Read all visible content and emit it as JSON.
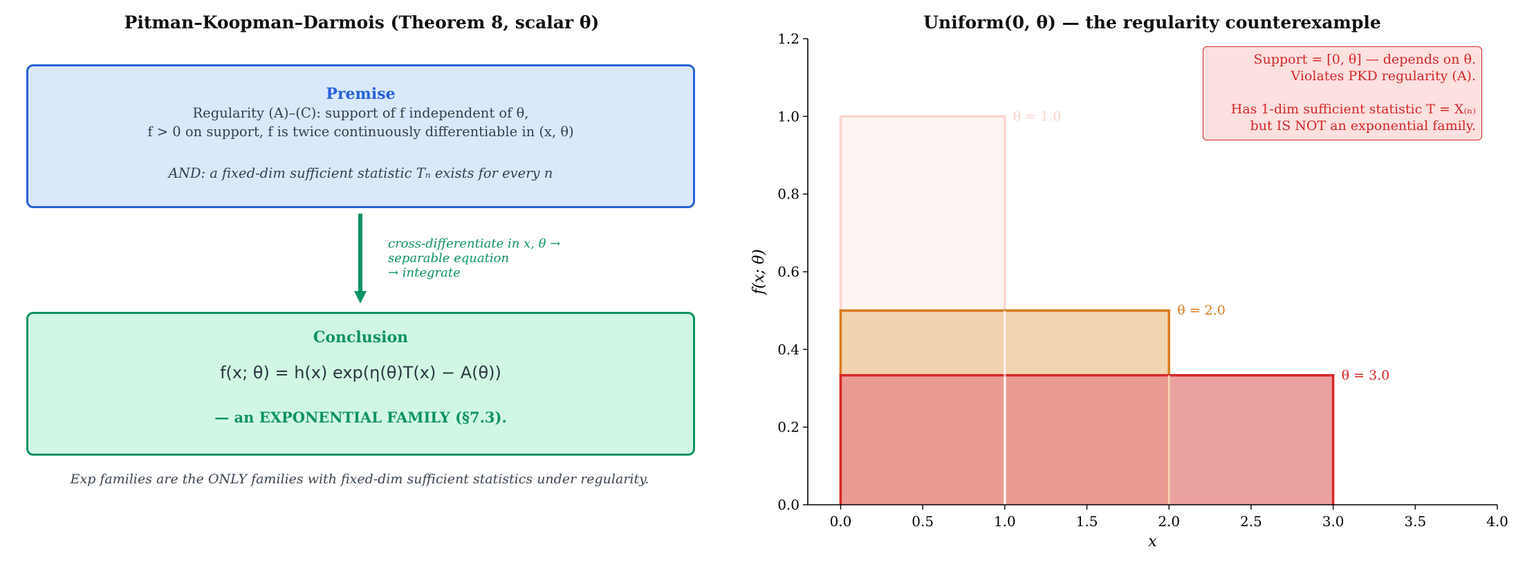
{
  "left_panel": {
    "title": "Pitman–Koopman–Darmois (Theorem 8, scalar θ)",
    "premise": {
      "heading": "Premise",
      "line1": "Regularity (A)–(C):   support of f independent of θ,",
      "line2": "f > 0 on support, f is twice continuously differentiable in (x, θ)",
      "line3": "AND: a fixed-dim sufficient statistic Tₙ exists for every n"
    },
    "arrow_note": [
      "cross-differentiate in x, θ →",
      "separable equation",
      "→ integrate"
    ],
    "conclusion": {
      "heading": "Conclusion",
      "formula": "f(x; θ) = h(x) exp(η(θ)T(x) − A(θ))",
      "result": "— an EXPONENTIAL FAMILY (§7.3)."
    },
    "footnote": "Exp families are the ONLY families with fixed-dim sufficient statistics under regularity."
  },
  "colors": {
    "premise_fill": "#dae8fc",
    "premise_border": "#2761d8",
    "conclusion_fill": "#d1f7e4",
    "conclusion_border": "#0e9363",
    "annotation": "#d62728"
  },
  "chart_data": {
    "type": "area",
    "title": "Uniform(0, θ) — the regularity counterexample",
    "xlabel": "x",
    "ylabel": "f(x; θ)",
    "xlim": [
      -0.2,
      4.0
    ],
    "ylim": [
      0.0,
      1.2
    ],
    "xticks": [
      "0.0",
      "0.5",
      "1.0",
      "1.5",
      "2.0",
      "2.5",
      "3.0",
      "3.5",
      "4.0"
    ],
    "yticks": [
      "0.0",
      "0.2",
      "0.4",
      "0.6",
      "0.8",
      "1.0",
      "1.2"
    ],
    "grid": false,
    "series": [
      {
        "name": "θ = 1.0",
        "theta": 1.0,
        "x": [
          0,
          1.0
        ],
        "y": [
          1.0,
          1.0
        ],
        "color": "#fdd5d0",
        "fill": "#fdf3f1"
      },
      {
        "name": "θ = 2.0",
        "theta": 2.0,
        "x": [
          0,
          2.0
        ],
        "y": [
          0.5,
          0.5
        ],
        "color": "#d97a1b",
        "fill": "#efcda2"
      },
      {
        "name": "θ = 3.0",
        "theta": 3.0,
        "x": [
          0,
          3.0
        ],
        "y": [
          0.3333,
          0.3333
        ],
        "color": "#d62728",
        "fill": "#e8908e"
      }
    ],
    "annotation": [
      "Support = [0, θ] — depends on θ.",
      "Violates PKD regularity (A).",
      "Has 1-dim sufficient statistic  T = X₍ₙ₎",
      "but IS NOT an exponential family."
    ]
  }
}
